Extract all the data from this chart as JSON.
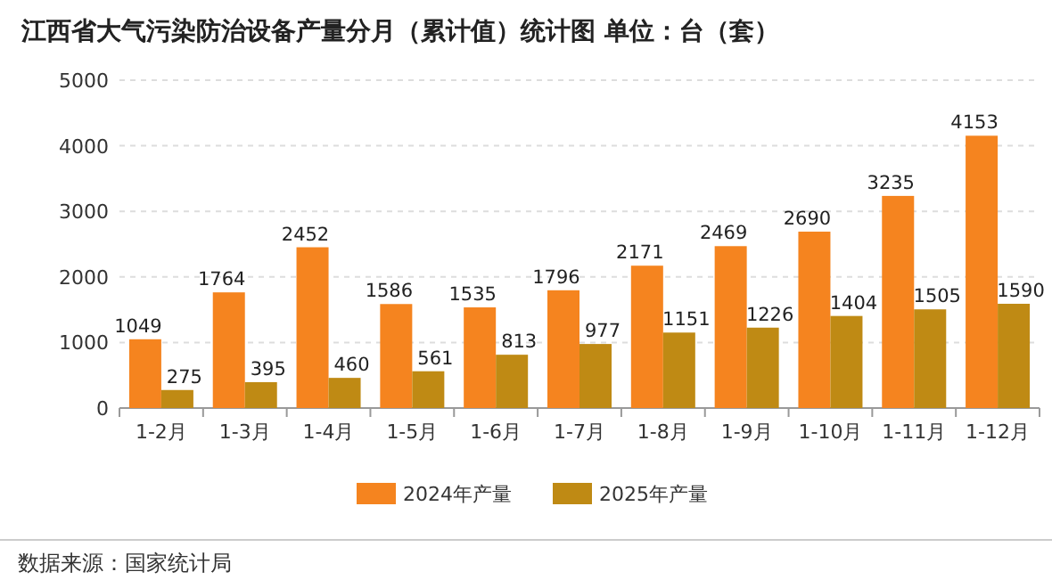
{
  "chart_data": {
    "type": "bar",
    "title": "江西省大气污染防治设备产量分月（累计值）统计图 单位：台（套）",
    "categories": [
      "1-2月",
      "1-3月",
      "1-4月",
      "1-5月",
      "1-6月",
      "1-7月",
      "1-8月",
      "1-9月",
      "1-10月",
      "1-11月",
      "1-12月"
    ],
    "series": [
      {
        "name": "2024年产量",
        "color": "#f5841f",
        "values": [
          1049,
          1764,
          2452,
          1586,
          1535,
          1796,
          2171,
          2469,
          2690,
          3235,
          4153
        ]
      },
      {
        "name": "2025年产量",
        "color": "#bf8a14",
        "values": [
          275,
          395,
          460,
          561,
          813,
          977,
          1151,
          1226,
          1404,
          1505,
          1590
        ]
      }
    ],
    "ylim": [
      0,
      5000
    ],
    "yticks": [
      0,
      1000,
      2000,
      3000,
      4000,
      5000
    ],
    "grid": "y",
    "legend": "bottom",
    "data_labels": true,
    "annotations": [
      "数据来源：国家统计局"
    ]
  }
}
